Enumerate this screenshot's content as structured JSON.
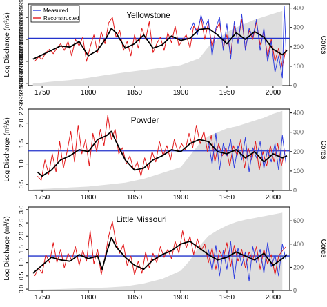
{
  "figure": {
    "ylabel_left": "Log Discharge (m³/s)",
    "ylabel_right": "Cores",
    "legend": {
      "items": [
        {
          "label": "Measured",
          "color": "#2e3ddf"
        },
        {
          "label": "Reconstructed",
          "color": "#e31a1c"
        }
      ]
    },
    "colors": {
      "measured": "#2e3ddf",
      "reconstructed": "#e31a1c",
      "smooth": "#000000",
      "mean_line": "#2233cc",
      "cores_fill": "#dedede"
    }
  },
  "chart_data": [
    {
      "type": "line",
      "title": "Yellowstone",
      "xlabel": "",
      "ylabel": "Log Discharge (m³/s)",
      "xlim": [
        1735,
        2018
      ],
      "ylim": [
        2.28,
        3.02
      ],
      "y_ticks": [
        2.3,
        2.5,
        2.7,
        2.9
      ],
      "x_ticks": [
        1750,
        1800,
        1850,
        1900,
        1950,
        2000
      ],
      "mean_line": 2.71,
      "cores_axis": {
        "label": "Cores",
        "ticks": [
          0,
          100,
          200,
          300,
          400
        ],
        "max": 420
      },
      "cores": {
        "x": [
          1740,
          1760,
          1780,
          1800,
          1820,
          1840,
          1860,
          1880,
          1900,
          1920,
          1930,
          1940,
          1950,
          1960,
          1970,
          1980,
          1990,
          2000,
          2010
        ],
        "values": [
          10,
          20,
          28,
          40,
          55,
          68,
          80,
          92,
          105,
          140,
          200,
          240,
          275,
          300,
          320,
          340,
          355,
          370,
          385
        ]
      },
      "smooth": {
        "x": [
          1740,
          1750,
          1760,
          1770,
          1780,
          1790,
          1800,
          1810,
          1820,
          1825,
          1830,
          1840,
          1850,
          1860,
          1870,
          1880,
          1890,
          1900,
          1910,
          1920,
          1930,
          1940,
          1950,
          1960,
          1970,
          1980,
          1990,
          2000,
          2010,
          2015
        ],
        "values": [
          2.52,
          2.56,
          2.6,
          2.64,
          2.63,
          2.68,
          2.55,
          2.6,
          2.72,
          2.8,
          2.76,
          2.62,
          2.66,
          2.74,
          2.62,
          2.65,
          2.73,
          2.69,
          2.71,
          2.79,
          2.8,
          2.74,
          2.66,
          2.76,
          2.7,
          2.77,
          2.72,
          2.61,
          2.56,
          2.6
        ]
      },
      "reconstructed": {
        "x": [
          1742,
          1746,
          1750,
          1754,
          1758,
          1762,
          1766,
          1770,
          1774,
          1778,
          1782,
          1786,
          1790,
          1794,
          1798,
          1802,
          1806,
          1810,
          1814,
          1818,
          1822,
          1826,
          1830,
          1834,
          1838,
          1842,
          1846,
          1850,
          1854,
          1858,
          1862,
          1866,
          1870,
          1874,
          1878,
          1882,
          1886,
          1890,
          1894,
          1898,
          1902,
          1906,
          1910,
          1914,
          1918,
          1922,
          1926,
          1930,
          1934,
          1938,
          1942,
          1946,
          1950,
          1954,
          1958,
          1962,
          1966,
          1970,
          1974,
          1978,
          1982,
          1986,
          1990,
          1994,
          1998,
          2002,
          2006,
          2010,
          2014
        ],
        "values": [
          2.5,
          2.54,
          2.52,
          2.58,
          2.61,
          2.57,
          2.62,
          2.66,
          2.6,
          2.68,
          2.55,
          2.7,
          2.64,
          2.72,
          2.5,
          2.63,
          2.74,
          2.58,
          2.77,
          2.66,
          2.85,
          2.9,
          2.72,
          2.78,
          2.6,
          2.68,
          2.55,
          2.74,
          2.62,
          2.8,
          2.7,
          2.86,
          2.58,
          2.66,
          2.72,
          2.6,
          2.76,
          2.67,
          2.82,
          2.64,
          2.7,
          2.74,
          2.62,
          2.82,
          2.78,
          2.9,
          2.7,
          2.85,
          2.63,
          2.78,
          2.85,
          2.62,
          2.74,
          2.57,
          2.82,
          2.68,
          2.88,
          2.62,
          2.78,
          2.7,
          2.86,
          2.65,
          2.77,
          2.55,
          2.7,
          2.5,
          2.62,
          2.45,
          2.62
        ]
      },
      "measured": {
        "x": [
          1910,
          1914,
          1918,
          1922,
          1926,
          1930,
          1934,
          1938,
          1942,
          1946,
          1950,
          1954,
          1958,
          1962,
          1966,
          1970,
          1974,
          1978,
          1982,
          1986,
          1990,
          1994,
          1998,
          2002,
          2006,
          2010,
          2012,
          2014
        ],
        "values": [
          2.78,
          2.85,
          2.74,
          2.92,
          2.8,
          2.88,
          2.55,
          2.8,
          2.9,
          2.6,
          2.84,
          2.52,
          2.86,
          2.66,
          2.93,
          2.6,
          2.8,
          2.72,
          2.88,
          2.6,
          2.8,
          2.5,
          2.68,
          2.4,
          2.55,
          2.35,
          3.0,
          2.6
        ]
      }
    },
    {
      "type": "line",
      "title": "Powder",
      "xlabel": "",
      "ylabel": "Log Discharge (m³/s)",
      "xlim": [
        1735,
        2018
      ],
      "ylim": [
        0.35,
        2.35
      ],
      "y_ticks": [
        0.5,
        1.0,
        1.5,
        2.0
      ],
      "x_ticks": [
        1750,
        1800,
        1850,
        1900,
        1950,
        2000
      ],
      "mean_line": 1.32,
      "cores_axis": {
        "label": "Cores",
        "ticks": [
          0,
          100,
          200,
          300,
          400
        ],
        "max": 420
      },
      "cores": {
        "x": [
          1740,
          1760,
          1780,
          1800,
          1820,
          1840,
          1860,
          1880,
          1900,
          1910,
          1920,
          1930,
          1940,
          1950,
          1960,
          1970,
          1980,
          1990,
          2000,
          2010
        ],
        "values": [
          5,
          10,
          15,
          20,
          30,
          40,
          60,
          90,
          120,
          180,
          240,
          280,
          300,
          320,
          330,
          345,
          360,
          375,
          395,
          410
        ]
      },
      "smooth": {
        "x": [
          1745,
          1750,
          1760,
          1770,
          1780,
          1790,
          1800,
          1810,
          1820,
          1825,
          1830,
          1840,
          1850,
          1860,
          1870,
          1880,
          1890,
          1900,
          1910,
          1920,
          1930,
          1940,
          1950,
          1960,
          1970,
          1980,
          1990,
          2000,
          2010,
          2015
        ],
        "values": [
          0.8,
          0.7,
          0.85,
          1.1,
          1.2,
          1.35,
          1.3,
          1.6,
          1.7,
          1.8,
          1.55,
          1.1,
          0.85,
          0.9,
          1.1,
          1.2,
          1.35,
          1.3,
          1.5,
          1.6,
          1.55,
          1.3,
          1.25,
          1.35,
          1.15,
          1.3,
          1.05,
          1.25,
          1.15,
          1.2
        ]
      },
      "reconstructed": {
        "x": [
          1745,
          1749,
          1753,
          1757,
          1761,
          1765,
          1769,
          1773,
          1777,
          1781,
          1785,
          1789,
          1793,
          1797,
          1801,
          1805,
          1809,
          1813,
          1817,
          1821,
          1825,
          1829,
          1833,
          1837,
          1841,
          1845,
          1849,
          1853,
          1857,
          1861,
          1865,
          1869,
          1873,
          1877,
          1881,
          1885,
          1889,
          1893,
          1897,
          1901,
          1905,
          1909,
          1913,
          1917,
          1921,
          1925,
          1929,
          1933,
          1937,
          1941,
          1945,
          1949,
          1953,
          1957,
          1961,
          1965,
          1969,
          1973,
          1977,
          1981,
          1985,
          1989,
          1993,
          1997,
          2001,
          2005,
          2009,
          2013
        ],
        "values": [
          0.7,
          0.6,
          1.1,
          0.75,
          1.25,
          0.8,
          1.55,
          0.9,
          1.3,
          1.8,
          1.05,
          1.95,
          1.25,
          1.6,
          0.95,
          1.75,
          1.3,
          1.85,
          1.45,
          2.2,
          1.6,
          1.85,
          1.25,
          1.4,
          1.0,
          1.2,
          0.85,
          1.05,
          0.7,
          1.15,
          0.85,
          1.3,
          1.05,
          1.55,
          1.2,
          1.45,
          1.1,
          1.6,
          1.3,
          1.5,
          1.35,
          1.75,
          1.4,
          1.95,
          1.5,
          1.8,
          1.3,
          1.7,
          1.05,
          1.5,
          1.2,
          1.4,
          0.95,
          1.45,
          1.2,
          1.6,
          0.9,
          1.4,
          1.1,
          1.55,
          0.85,
          1.3,
          0.95,
          1.45,
          1.05,
          1.5,
          0.95,
          1.35
        ]
      },
      "measured": {
        "x": [
          1930,
          1934,
          1938,
          1942,
          1946,
          1950,
          1954,
          1958,
          1962,
          1966,
          1970,
          1974,
          1978,
          1982,
          1986,
          1990,
          1994,
          1998,
          2002,
          2006,
          2010,
          2014
        ],
        "values": [
          1.55,
          1.0,
          1.75,
          0.85,
          1.5,
          1.2,
          1.6,
          0.9,
          1.45,
          1.1,
          1.65,
          0.8,
          1.4,
          1.15,
          1.55,
          0.9,
          1.35,
          1.05,
          1.5,
          0.85,
          1.7,
          1.0
        ]
      }
    },
    {
      "type": "line",
      "title": "Little Missouri",
      "xlabel": "",
      "ylabel": "Log Discharge (m³/s)",
      "xlim": [
        1735,
        2018
      ],
      "ylim": [
        -0.05,
        3.1
      ],
      "y_ticks": [
        0.0,
        0.5,
        1.0,
        1.5,
        2.0,
        2.5,
        3.0
      ],
      "x_ticks": [
        1750,
        1800,
        1850,
        1900,
        1950,
        2000
      ],
      "mean_line": 1.25,
      "cores_axis": {
        "label": "Cores",
        "ticks": [
          0,
          200,
          400,
          600
        ],
        "max": 720
      },
      "cores": {
        "x": [
          1740,
          1760,
          1780,
          1800,
          1820,
          1840,
          1860,
          1880,
          1900,
          1910,
          1920,
          1930,
          1940,
          1950,
          1960,
          1970,
          1980,
          1990,
          2000,
          2010
        ],
        "values": [
          5,
          10,
          15,
          20,
          25,
          35,
          60,
          100,
          170,
          260,
          380,
          470,
          520,
          560,
          590,
          610,
          625,
          640,
          655,
          670
        ]
      },
      "smooth": {
        "x": [
          1740,
          1750,
          1760,
          1770,
          1780,
          1790,
          1800,
          1810,
          1815,
          1820,
          1825,
          1830,
          1840,
          1850,
          1860,
          1870,
          1880,
          1890,
          1900,
          1910,
          1920,
          1930,
          1940,
          1950,
          1960,
          1970,
          1980,
          1990,
          2000,
          2010,
          2015
        ],
        "values": [
          0.6,
          0.9,
          1.2,
          1.1,
          1.05,
          1.3,
          1.15,
          1.25,
          0.75,
          1.4,
          1.95,
          1.6,
          1.2,
          0.9,
          0.75,
          1.1,
          1.3,
          1.45,
          1.7,
          1.8,
          1.55,
          1.3,
          1.1,
          1.2,
          1.4,
          1.25,
          1.1,
          1.35,
          0.9,
          1.15,
          1.3
        ]
      },
      "reconstructed": {
        "x": [
          1742,
          1746,
          1750,
          1754,
          1758,
          1762,
          1766,
          1770,
          1774,
          1778,
          1782,
          1786,
          1790,
          1794,
          1798,
          1802,
          1806,
          1810,
          1814,
          1818,
          1822,
          1826,
          1830,
          1834,
          1838,
          1842,
          1846,
          1850,
          1854,
          1858,
          1862,
          1866,
          1870,
          1874,
          1878,
          1882,
          1886,
          1890,
          1894,
          1898,
          1902,
          1906,
          1910,
          1914,
          1918,
          1922,
          1926,
          1930,
          1934,
          1938,
          1942,
          1946,
          1950,
          1954,
          1958,
          1962,
          1966,
          1970,
          1974,
          1978,
          1982,
          1986,
          1990,
          1994,
          1998,
          2002,
          2006,
          2010,
          2014
        ],
        "values": [
          0.5,
          0.8,
          0.6,
          1.3,
          1.0,
          1.75,
          1.0,
          1.5,
          0.8,
          1.35,
          1.1,
          1.6,
          0.9,
          1.45,
          1.05,
          2.2,
          0.95,
          1.5,
          0.55,
          1.2,
          2.0,
          2.55,
          1.75,
          1.35,
          1.7,
          0.9,
          1.25,
          0.55,
          1.05,
          0.6,
          1.4,
          0.8,
          1.35,
          1.0,
          1.6,
          1.2,
          1.5,
          1.15,
          1.8,
          1.35,
          2.2,
          1.55,
          2.0,
          1.3,
          1.9,
          1.45,
          1.7,
          1.0,
          1.55,
          0.75,
          1.45,
          1.15,
          1.75,
          0.85,
          1.65,
          1.05,
          1.5,
          0.8,
          1.4,
          1.1,
          1.6,
          0.75,
          1.5,
          0.95,
          1.3,
          0.55,
          1.25,
          1.45,
          1.6
        ]
      },
      "measured": {
        "x": [
          1930,
          1934,
          1938,
          1942,
          1946,
          1950,
          1954,
          1958,
          1962,
          1966,
          1970,
          1974,
          1978,
          1982,
          1986,
          1990,
          1994,
          1998,
          2002,
          2006,
          2010,
          2014
        ],
        "values": [
          1.5,
          0.7,
          1.65,
          0.5,
          1.45,
          0.75,
          1.8,
          0.4,
          1.55,
          0.9,
          1.4,
          0.3,
          1.6,
          1.0,
          1.5,
          0.6,
          1.75,
          0.85,
          1.3,
          0.5,
          1.7,
          1.1
        ]
      }
    }
  ]
}
